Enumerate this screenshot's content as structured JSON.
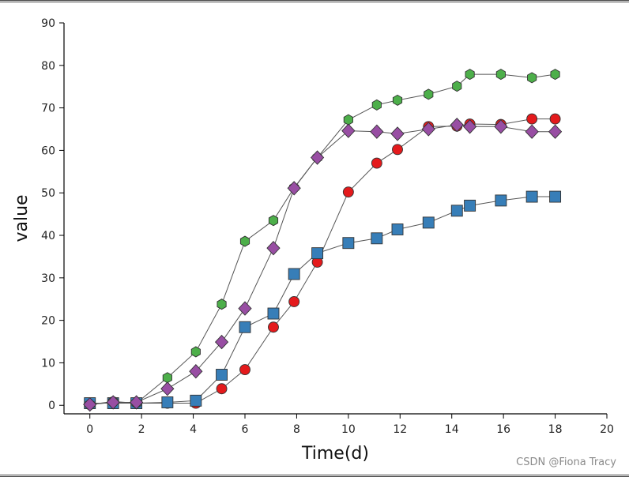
{
  "watermark": "CSDN @Fiona Tracy",
  "chart_data": {
    "type": "line",
    "title": "",
    "xlabel": "Time(d)",
    "ylabel": "value",
    "xlim": [
      -1,
      20
    ],
    "ylim": [
      -2,
      90
    ],
    "xticks": [
      0,
      2,
      4,
      6,
      8,
      10,
      12,
      14,
      16,
      18,
      20
    ],
    "yticks": [
      0,
      10,
      20,
      30,
      40,
      50,
      60,
      70,
      80,
      90
    ],
    "grid": false,
    "line_color": "#555555",
    "series": [
      {
        "marker": "circle",
        "color": "#e41a1c",
        "x": [
          0,
          0.9,
          1.8,
          3.0,
          4.1,
          5.1,
          6.0,
          7.1,
          7.9,
          8.8,
          10.0,
          11.1,
          11.9,
          13.1,
          14.2,
          14.7,
          15.9,
          17.1,
          18.0
        ],
        "y": [
          0.2,
          0.8,
          0.5,
          0.5,
          0.5,
          3.9,
          8.4,
          18.4,
          24.4,
          33.7,
          50.2,
          57.0,
          60.2,
          65.6,
          65.7,
          66.2,
          66.1,
          67.4,
          67.4
        ]
      },
      {
        "marker": "square",
        "color": "#377eb8",
        "x": [
          0,
          0.9,
          1.8,
          3.0,
          4.1,
          5.1,
          6.0,
          7.1,
          7.9,
          8.8,
          10.0,
          11.1,
          11.9,
          13.1,
          14.2,
          14.7,
          15.9,
          17.1,
          18.0
        ],
        "y": [
          0.5,
          0.5,
          0.5,
          0.7,
          1.1,
          7.2,
          18.4,
          21.6,
          30.9,
          35.8,
          38.2,
          39.3,
          41.4,
          43.0,
          45.8,
          47.0,
          48.2,
          49.1,
          49.1
        ]
      },
      {
        "marker": "hexagon",
        "color": "#4daf4a",
        "x": [
          0,
          0.9,
          1.8,
          3.0,
          4.1,
          5.1,
          6.0,
          7.1,
          7.9,
          8.8,
          10.0,
          11.1,
          11.9,
          13.1,
          14.2,
          14.7,
          15.9,
          17.1,
          18.0
        ],
        "y": [
          0.2,
          0.9,
          0.5,
          6.5,
          12.6,
          23.8,
          38.6,
          43.5,
          51.2,
          58.3,
          67.2,
          70.7,
          71.8,
          73.2,
          75.1,
          77.9,
          77.9,
          77.1,
          77.9
        ]
      },
      {
        "marker": "diamond",
        "color": "#984ea3",
        "x": [
          0,
          0.9,
          1.8,
          3.0,
          4.1,
          5.1,
          6.0,
          7.1,
          7.9,
          8.8,
          10.0,
          11.1,
          11.9,
          13.1,
          14.2,
          14.7,
          15.9,
          17.1,
          18.0
        ],
        "y": [
          0.2,
          0.7,
          0.7,
          3.9,
          8.0,
          14.9,
          22.8,
          37.0,
          51.1,
          58.3,
          64.6,
          64.4,
          63.9,
          65.0,
          66.0,
          65.6,
          65.6,
          64.4,
          64.4
        ]
      }
    ]
  }
}
